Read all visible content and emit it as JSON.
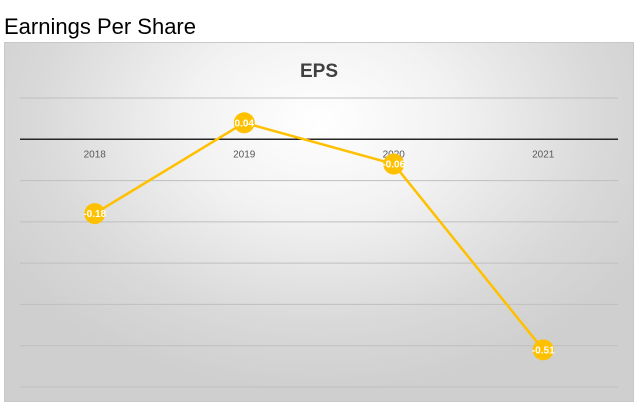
{
  "page_title": "Earnings Per Share",
  "colors": {
    "line": "#FFC000",
    "axis": "#262626",
    "gridline": "#bfbfbf",
    "data_label_text": "#ffffff",
    "title_text": "#404040"
  },
  "chart_data": {
    "type": "line",
    "title": "EPS",
    "xlabel": "",
    "ylabel": "",
    "categories": [
      "2018",
      "2019",
      "2020",
      "2021"
    ],
    "series": [
      {
        "values": [
          -0.18,
          0.04,
          -0.06,
          -0.51
        ],
        "labels": [
          "-0.18",
          "0.04",
          "-0.06",
          "-0.51"
        ]
      }
    ],
    "ylim": [
      -0.6,
      0.1
    ],
    "grid": true,
    "legend": "none",
    "data_labels": true,
    "marker": "circle"
  }
}
